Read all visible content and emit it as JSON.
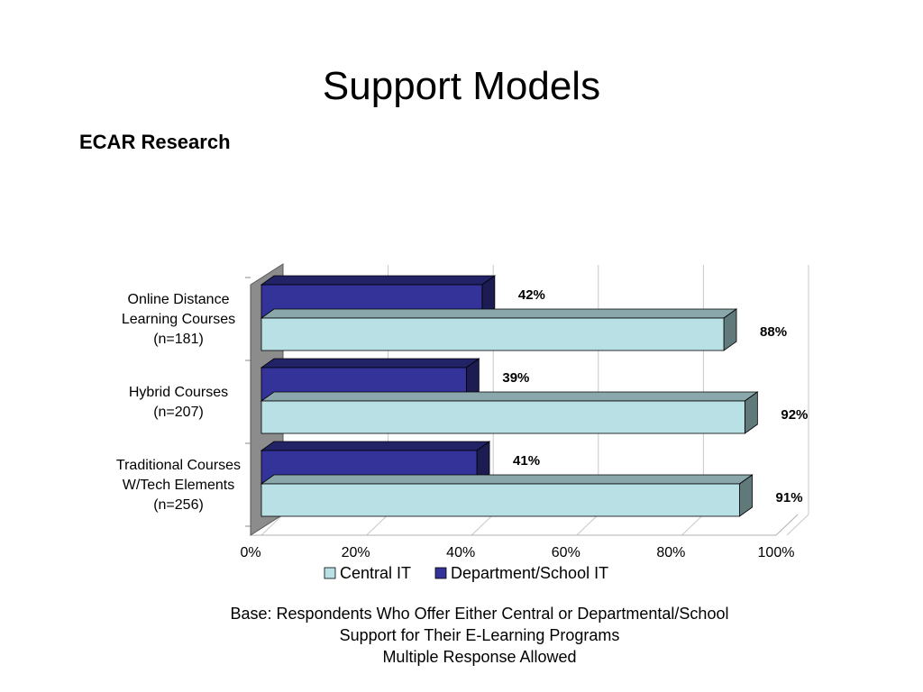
{
  "slide": {
    "title": "Support Models",
    "subtitle": "ECAR Research",
    "footnote": [
      "Base: Respondents Who Offer Either Central or Departmental/School",
      "Support for Their E-Learning Programs",
      "Multiple Response Allowed"
    ]
  },
  "chart_data": {
    "type": "bar",
    "orientation": "horizontal",
    "style": "3d-clustered",
    "categories": [
      [
        "Online Distance",
        "Learning Courses",
        "(n=181)"
      ],
      [
        "Hybrid Courses",
        "(n=207)"
      ],
      [
        "Traditional Courses",
        "W/Tech Elements",
        "(n=256)"
      ]
    ],
    "series": [
      {
        "name": "Central IT",
        "color": "#b9e0e4",
        "values": [
          88,
          92,
          91
        ],
        "labels": [
          "88%",
          "92%",
          "91%"
        ]
      },
      {
        "name": "Department/School IT",
        "color": "#333399",
        "values": [
          42,
          39,
          41
        ],
        "labels": [
          "42%",
          "39%",
          "41%"
        ]
      }
    ],
    "xlim": [
      0,
      100
    ],
    "xticks": [
      "0%",
      "20%",
      "40%",
      "60%",
      "80%",
      "100%"
    ],
    "grid": true,
    "legend": "bottom"
  }
}
